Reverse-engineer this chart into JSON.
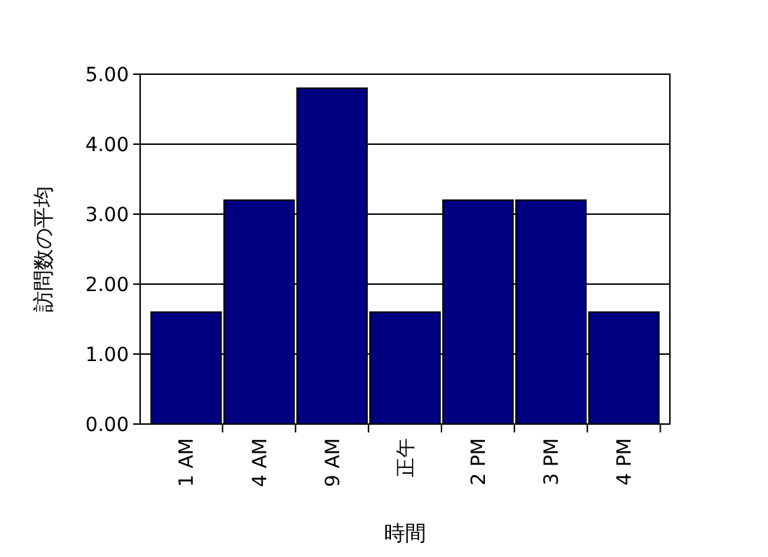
{
  "chart_data": {
    "type": "bar",
    "xlabel": "時間",
    "ylabel": "訪問数の平均",
    "categories": [
      "1 AM",
      "4 AM",
      "9 AM",
      "正午",
      "2 PM",
      "3 PM",
      "4 PM"
    ],
    "values": [
      1.6,
      3.2,
      4.8,
      1.6,
      3.2,
      3.2,
      1.6
    ],
    "color": "#000080",
    "ylim": [
      0,
      5
    ],
    "yticks": [
      {
        "value": 0,
        "label": "0.00"
      },
      {
        "value": 1,
        "label": "1.00"
      },
      {
        "value": 2,
        "label": "2.00"
      },
      {
        "value": 3,
        "label": "3.00"
      },
      {
        "value": 4,
        "label": "4.00"
      },
      {
        "value": 5,
        "label": "5.00"
      }
    ],
    "grid": "y"
  }
}
